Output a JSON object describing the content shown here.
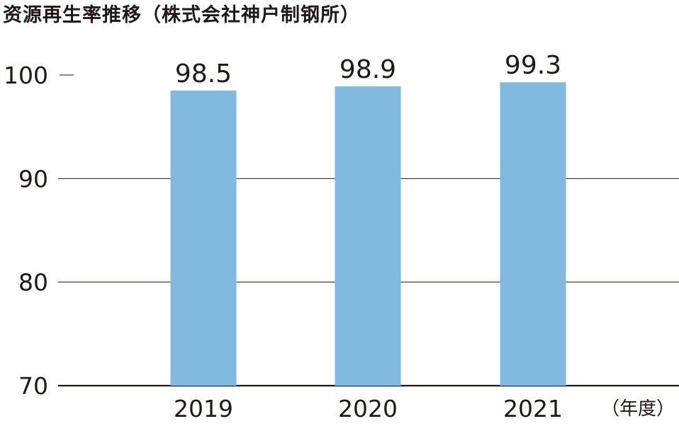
{
  "chart_data": {
    "type": "bar",
    "title": "资源再生率推移（株式会社神户制钢所）",
    "categories": [
      "2019",
      "2020",
      "2021"
    ],
    "values": [
      98.5,
      98.9,
      99.3
    ],
    "data_labels": [
      "98.5",
      "98.9",
      "99.3"
    ],
    "xlabel": "（年度）",
    "ylabel": "",
    "ylim": [
      70,
      100
    ],
    "yticks": [
      70,
      80,
      90,
      100
    ],
    "ytick_labels": [
      "70",
      "80",
      "90",
      "100"
    ],
    "grid": true,
    "legend": "none",
    "colors": {
      "bar": "#82b9df",
      "grid": "#231815",
      "text": "#231815"
    }
  }
}
